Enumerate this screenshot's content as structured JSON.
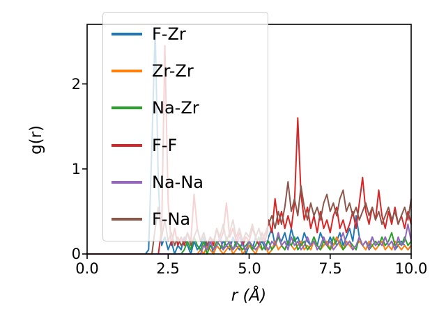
{
  "figure": {
    "background": "#ffffff"
  },
  "chart_data": {
    "type": "line",
    "title": "",
    "xlabel": "r (Å)",
    "ylabel": "g(r)",
    "xlim": [
      0,
      10
    ],
    "ylim": [
      0,
      2.7
    ],
    "x_start": 0.0,
    "x_step": 0.1,
    "x_tick_labels": [
      "0.0",
      "2.5",
      "5.0",
      "7.5",
      "10.0"
    ],
    "y_tick_labels": [
      "0",
      "1",
      "2"
    ],
    "grid": false,
    "legend_position": "upper left",
    "series": [
      {
        "name": "F-Zr",
        "color": "#1f77b4",
        "values": [
          0,
          0,
          0,
          0,
          0,
          0,
          0,
          0,
          0,
          0,
          0,
          0,
          0,
          0,
          0,
          0,
          0,
          0,
          0,
          0.05,
          1.3,
          2.65,
          0.8,
          0.1,
          0.2,
          0.05,
          0.15,
          0,
          0.1,
          0.05,
          0.2,
          0.1,
          0,
          0.15,
          0.05,
          0.1,
          0.2,
          0.05,
          0.15,
          0,
          0.1,
          0.05,
          0.15,
          0.1,
          0.05,
          0.2,
          0.1,
          0.05,
          0.15,
          0,
          0.1,
          0.05,
          0.2,
          0.1,
          0.15,
          0.05,
          0.2,
          0.3,
          0.1,
          0.2,
          0.15,
          0.25,
          0.1,
          0.3,
          0.15,
          0.2,
          0.1,
          0.25,
          0.15,
          0.1,
          0.2,
          0.1,
          0.25,
          0.15,
          0.1,
          0.2,
          0.1,
          0.15,
          0.25,
          0.1,
          0.2,
          0.3,
          0.15,
          0.45,
          0.2,
          0.1,
          0.15,
          0.1,
          0.2,
          0.1,
          0.15,
          0.1,
          0.2,
          0.1,
          0.15,
          0.05,
          0.1,
          0.15,
          0.1,
          0.05,
          0.1
        ]
      },
      {
        "name": "Zr-Zr",
        "color": "#ff7f0e",
        "values": [
          0,
          0,
          0,
          0,
          0,
          0,
          0,
          0,
          0,
          0,
          0,
          0,
          0,
          0,
          0,
          0,
          0,
          0,
          0,
          0,
          0,
          0,
          0,
          0,
          0,
          0,
          0,
          0,
          0,
          0,
          0,
          0,
          0,
          0,
          0,
          0.05,
          0,
          0.1,
          0.05,
          0,
          0.1,
          0.05,
          0,
          0.05,
          0.1,
          0,
          0.05,
          0.1,
          0,
          0.05,
          0.1,
          0.05,
          0,
          0.1,
          0.05,
          0.1,
          0,
          0.05,
          0.15,
          0.05,
          0.1,
          0.05,
          0.15,
          0.1,
          0.05,
          0.1,
          0.15,
          0.05,
          0.1,
          0.05,
          0.15,
          0.1,
          0.05,
          0.1,
          0.15,
          0.05,
          0.1,
          0.2,
          0.1,
          0.05,
          0.15,
          0.1,
          0.05,
          0.1,
          0.15,
          0.1,
          0.05,
          0.15,
          0.1,
          0.05,
          0.1,
          0.15,
          0.05,
          0.1,
          0.05,
          0.15,
          0.1,
          0.05,
          0.1,
          0.05,
          0.1
        ]
      },
      {
        "name": "Na-Zr",
        "color": "#2ca02c",
        "values": [
          0,
          0,
          0,
          0,
          0,
          0,
          0,
          0,
          0,
          0,
          0,
          0,
          0,
          0,
          0,
          0,
          0,
          0,
          0,
          0,
          0,
          0,
          0,
          0,
          0,
          0,
          0,
          0,
          0,
          0,
          0.05,
          0.15,
          0.05,
          0.2,
          0.1,
          0.05,
          0.15,
          0,
          0.1,
          0.05,
          0.15,
          0.1,
          0.05,
          0.2,
          0.1,
          0.05,
          0.15,
          0.1,
          0.05,
          0.1,
          0.15,
          0.05,
          0.1,
          0.2,
          0.05,
          0.1,
          0.15,
          0.05,
          0.1,
          0.2,
          0.1,
          0.05,
          0.15,
          0.1,
          0.2,
          0.05,
          0.1,
          0.15,
          0.05,
          0.1,
          0.2,
          0.1,
          0.05,
          0.15,
          0.1,
          0.05,
          0.2,
          0.1,
          0.15,
          0.05,
          0.1,
          0.15,
          0.1,
          0.05,
          0.2,
          0.1,
          0.15,
          0.05,
          0.1,
          0.15,
          0.1,
          0.2,
          0.1,
          0.15,
          0.25,
          0.1,
          0.15,
          0.1,
          0.2,
          0.1,
          0.15
        ]
      },
      {
        "name": "F-F",
        "color": "#d62728",
        "values": [
          0,
          0,
          0,
          0,
          0,
          0,
          0,
          0,
          0,
          0,
          0,
          0,
          0,
          0,
          0,
          0,
          0,
          0,
          0,
          0,
          0,
          0,
          0,
          0.3,
          2.45,
          0.6,
          0.1,
          0.3,
          0.1,
          0.2,
          0.1,
          0.25,
          0.15,
          0.7,
          0.3,
          0.15,
          0.25,
          0.1,
          0.2,
          0.1,
          0.3,
          0.15,
          0.25,
          0.6,
          0.2,
          0.3,
          0.15,
          0.25,
          0.1,
          0.2,
          0.15,
          0.3,
          0.2,
          0.1,
          0.25,
          0.15,
          0.4,
          0.25,
          0.65,
          0.35,
          0.5,
          0.3,
          0.45,
          0.3,
          0.6,
          1.6,
          0.7,
          0.4,
          0.55,
          0.3,
          0.45,
          0.25,
          0.5,
          0.3,
          0.4,
          0.25,
          0.45,
          0.55,
          0.3,
          0.4,
          0.25,
          0.35,
          0.5,
          0.3,
          0.6,
          0.9,
          0.5,
          0.35,
          0.55,
          0.4,
          0.75,
          0.45,
          0.3,
          0.5,
          0.35,
          0.55,
          0.35,
          0.45,
          0.3,
          0.5,
          0.35
        ]
      },
      {
        "name": "Na-Na",
        "color": "#9467bd",
        "values": [
          0,
          0,
          0,
          0,
          0,
          0,
          0,
          0,
          0,
          0,
          0,
          0,
          0,
          0,
          0,
          0,
          0,
          0,
          0,
          0,
          0,
          0,
          0,
          0,
          0,
          0,
          0,
          0,
          0,
          0,
          0,
          0,
          0,
          0,
          0,
          0,
          0.1,
          0.05,
          0.15,
          0.05,
          0.1,
          0.2,
          0.05,
          0.1,
          0.15,
          0.05,
          0.1,
          0.2,
          0.1,
          0.05,
          0.15,
          0.1,
          0.05,
          0.1,
          0.2,
          0.1,
          0.05,
          0.15,
          0.1,
          0.25,
          0.1,
          0.15,
          0.05,
          0.2,
          0.1,
          0.15,
          0.05,
          0.1,
          0.2,
          0.1,
          0.15,
          0.05,
          0.1,
          0.2,
          0.1,
          0.15,
          0.05,
          0.1,
          0.15,
          0.25,
          0.1,
          0.15,
          0.05,
          0.1,
          0.2,
          0.1,
          0.15,
          0.05,
          0.2,
          0.1,
          0.15,
          0.1,
          0.2,
          0.1,
          0.15,
          0.05,
          0.2,
          0.1,
          0.15,
          0.35,
          0.15
        ]
      },
      {
        "name": "F-Na",
        "color": "#8c564b",
        "values": [
          0,
          0,
          0,
          0,
          0,
          0,
          0,
          0,
          0,
          0,
          0,
          0,
          0,
          0,
          0,
          0,
          0,
          0,
          0,
          0,
          0,
          0.3,
          0.55,
          0.2,
          0.4,
          0.15,
          0.25,
          0.1,
          0.2,
          0.1,
          0.15,
          0.25,
          0.1,
          0.2,
          0.3,
          0.15,
          0.25,
          0.1,
          0.2,
          0.15,
          0.3,
          0.2,
          0.35,
          0.15,
          0.25,
          0.4,
          0.2,
          0.3,
          0.15,
          0.25,
          0.2,
          0.35,
          0.2,
          0.3,
          0.15,
          0.25,
          0.35,
          0.45,
          0.3,
          0.5,
          0.35,
          0.55,
          0.85,
          0.5,
          0.65,
          0.45,
          0.8,
          0.55,
          0.4,
          0.6,
          0.45,
          0.55,
          0.4,
          0.6,
          0.7,
          0.5,
          0.6,
          0.45,
          0.65,
          0.75,
          0.5,
          0.6,
          0.45,
          0.55,
          0.4,
          0.5,
          0.6,
          0.45,
          0.55,
          0.4,
          0.5,
          0.35,
          0.45,
          0.55,
          0.4,
          0.5,
          0.35,
          0.45,
          0.55,
          0.4,
          0.65
        ]
      }
    ]
  }
}
